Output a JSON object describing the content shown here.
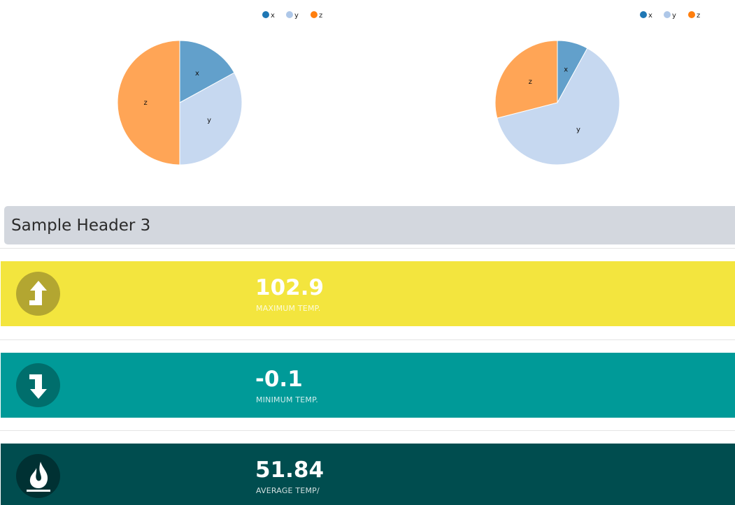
{
  "chart_data": [
    {
      "type": "pie",
      "legend": [
        "x",
        "y",
        "z"
      ],
      "labels": [
        "x",
        "y",
        "z"
      ],
      "values": [
        17,
        33,
        50
      ],
      "legend_position": "top-right"
    },
    {
      "type": "pie",
      "legend": [
        "x",
        "y",
        "z"
      ],
      "labels": [
        "x",
        "y",
        "z"
      ],
      "values": [
        8,
        63,
        29
      ],
      "legend_position": "top-right"
    }
  ],
  "colors": {
    "series_legend": [
      "#1f77b4",
      "#aec7e8",
      "#ff7f0e"
    ],
    "series_fill": [
      "#62a0cb",
      "#c6d8f0",
      "#ffa556"
    ]
  },
  "section": {
    "title": "Sample Header 3"
  },
  "stats": [
    {
      "value": "102.9",
      "label": "MAXIMUM TEMP.",
      "icon": "arrow-up-icon",
      "bg": "#f3e53e",
      "icon_bg": "#b3a631"
    },
    {
      "value": "-0.1",
      "label": "MINIMUM TEMP.",
      "icon": "arrow-down-icon",
      "bg": "#009a98",
      "icon_bg": "#006e6c"
    },
    {
      "value": "51.84",
      "label": "AVERAGE TEMP/",
      "icon": "flame-icon",
      "bg": "#004d4f",
      "icon_bg": "#003133"
    }
  ]
}
